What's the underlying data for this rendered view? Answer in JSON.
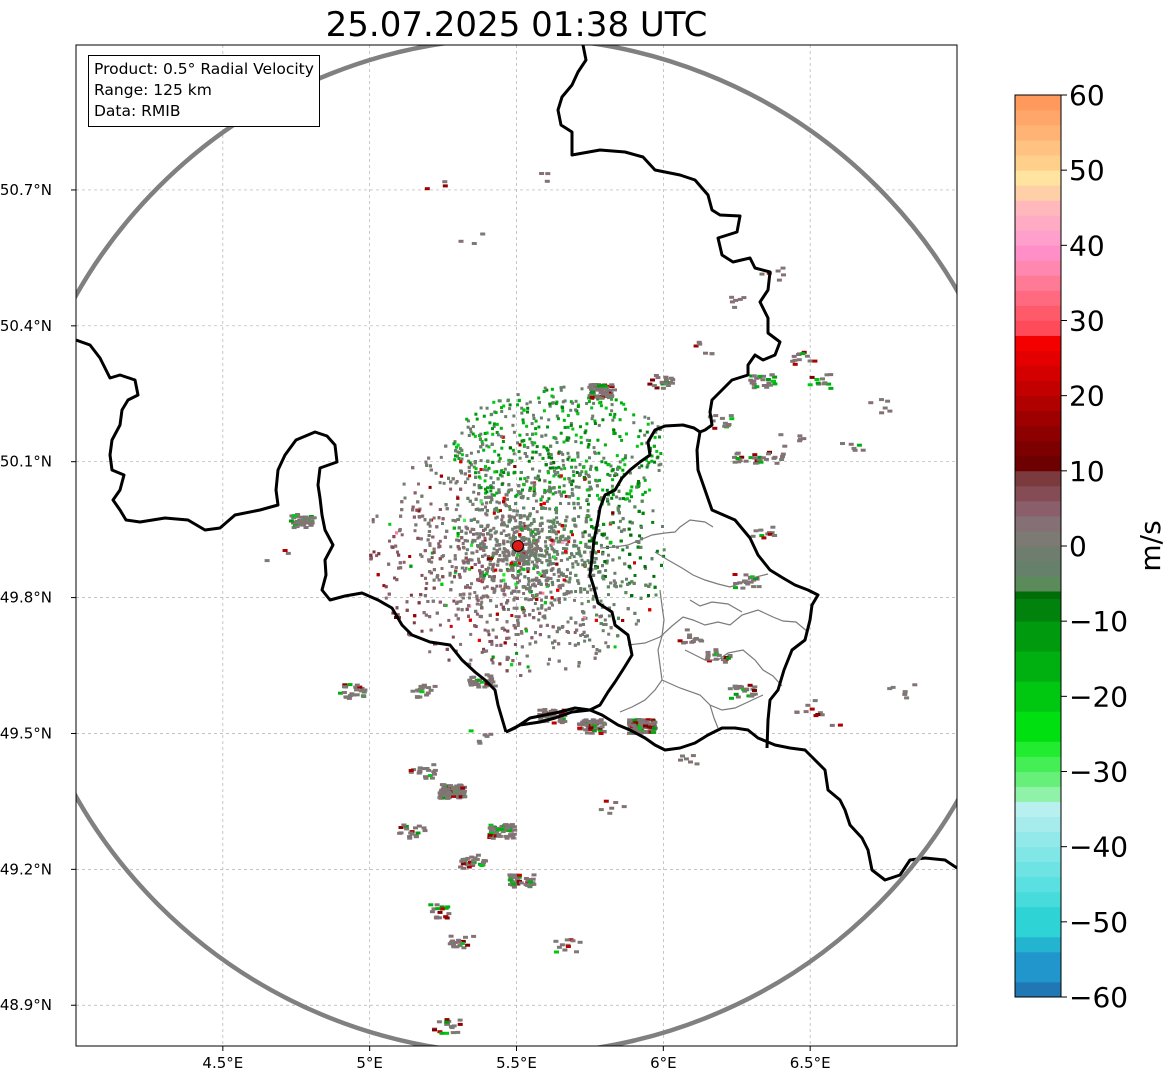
{
  "title": "25.07.2025 01:38 UTC",
  "info": {
    "product": "Product: 0.5° Radial Velocity",
    "range": "Range: 125 km",
    "source": "Data: RMIB"
  },
  "axes": {
    "x_ticks": [
      {
        "label": "4.5°E",
        "lon": 4.5
      },
      {
        "label": "5°E",
        "lon": 5.0
      },
      {
        "label": "5.5°E",
        "lon": 5.5
      },
      {
        "label": "6°E",
        "lon": 6.0
      },
      {
        "label": "6.5°E",
        "lon": 6.5
      }
    ],
    "y_ticks": [
      {
        "label": "50.7°N",
        "lat": 50.7
      },
      {
        "label": "50.4°N",
        "lat": 50.4
      },
      {
        "label": "50.1°N",
        "lat": 50.1
      },
      {
        "label": "49.8°N",
        "lat": 49.8
      },
      {
        "label": "49.5°N",
        "lat": 49.5
      },
      {
        "label": "49.2°N",
        "lat": 49.2
      },
      {
        "label": "48.9°N",
        "lat": 48.9
      }
    ],
    "lon_range": [
      4.0,
      7.0
    ],
    "lat_range": [
      48.81,
      51.02
    ]
  },
  "radar": {
    "lon": 5.505,
    "lat": 49.914,
    "range_km": 125,
    "site_color": "#e0191b"
  },
  "colorbar": {
    "unit": "m/s",
    "min": -60,
    "max": 60,
    "ticks": [
      60,
      50,
      40,
      30,
      20,
      10,
      0,
      -10,
      -20,
      -30,
      -40,
      -50,
      -60
    ],
    "tick_labels": [
      "60",
      "50",
      "40",
      "30",
      "20",
      "10",
      "0",
      "−10",
      "−20",
      "−30",
      "−40",
      "−50",
      "−60"
    ],
    "bands": [
      {
        "from": -60,
        "to": -58,
        "color": "#1f77b4"
      },
      {
        "from": -58,
        "to": -54,
        "color": "#2196cc"
      },
      {
        "from": -54,
        "to": -52,
        "color": "#23b4d0"
      },
      {
        "from": -52,
        "to": -48,
        "color": "#2ed3d6"
      },
      {
        "from": -48,
        "to": -46,
        "color": "#48dbdb"
      },
      {
        "from": -46,
        "to": -44,
        "color": "#5ae0e0"
      },
      {
        "from": -44,
        "to": -42,
        "color": "#6de3e3"
      },
      {
        "from": -42,
        "to": -40,
        "color": "#80e6e6"
      },
      {
        "from": -40,
        "to": -38,
        "color": "#93e9e9"
      },
      {
        "from": -38,
        "to": -36,
        "color": "#a6ecec"
      },
      {
        "from": -36,
        "to": -34,
        "color": "#b8efef"
      },
      {
        "from": -34,
        "to": -32,
        "color": "#90f2a8"
      },
      {
        "from": -32,
        "to": -30,
        "color": "#66f07a"
      },
      {
        "from": -30,
        "to": -28,
        "color": "#44ee55"
      },
      {
        "from": -28,
        "to": -26,
        "color": "#22ec30"
      },
      {
        "from": -26,
        "to": -22,
        "color": "#00e010"
      },
      {
        "from": -22,
        "to": -18,
        "color": "#00c810"
      },
      {
        "from": -18,
        "to": -14,
        "color": "#00b010"
      },
      {
        "from": -14,
        "to": -10,
        "color": "#009a0e"
      },
      {
        "from": -10,
        "to": -7,
        "color": "#00820c"
      },
      {
        "from": -7,
        "to": -6,
        "color": "#006e08"
      },
      {
        "from": -6,
        "to": -4,
        "color": "#5b8a5b"
      },
      {
        "from": -4,
        "to": -2,
        "color": "#67806b"
      },
      {
        "from": -2,
        "to": 0,
        "color": "#6e7d6e"
      },
      {
        "from": 0,
        "to": 2,
        "color": "#7d7a74"
      },
      {
        "from": 2,
        "to": 4,
        "color": "#857076"
      },
      {
        "from": 4,
        "to": 6,
        "color": "#8a5f6b"
      },
      {
        "from": 6,
        "to": 8,
        "color": "#864c55"
      },
      {
        "from": 8,
        "to": 10,
        "color": "#7a3a3e"
      },
      {
        "from": 10,
        "to": 12,
        "color": "#6d0000"
      },
      {
        "from": 12,
        "to": 14,
        "color": "#7d0000"
      },
      {
        "from": 14,
        "to": 16,
        "color": "#8d0000"
      },
      {
        "from": 16,
        "to": 18,
        "color": "#9e0000"
      },
      {
        "from": 18,
        "to": 20,
        "color": "#b00000"
      },
      {
        "from": 20,
        "to": 22,
        "color": "#c20000"
      },
      {
        "from": 22,
        "to": 24,
        "color": "#d40000"
      },
      {
        "from": 24,
        "to": 26,
        "color": "#e40000"
      },
      {
        "from": 26,
        "to": 28,
        "color": "#f50000"
      },
      {
        "from": 28,
        "to": 30,
        "color": "#ff4a5a"
      },
      {
        "from": 30,
        "to": 32,
        "color": "#ff5a6a"
      },
      {
        "from": 32,
        "to": 34,
        "color": "#ff6a80"
      },
      {
        "from": 34,
        "to": 36,
        "color": "#ff7a95"
      },
      {
        "from": 36,
        "to": 38,
        "color": "#ff87b0"
      },
      {
        "from": 38,
        "to": 40,
        "color": "#ff8fc6"
      },
      {
        "from": 40,
        "to": 42,
        "color": "#ff9fcc"
      },
      {
        "from": 42,
        "to": 44,
        "color": "#ffabc4"
      },
      {
        "from": 44,
        "to": 46,
        "color": "#ffb8bc"
      },
      {
        "from": 46,
        "to": 48,
        "color": "#ffd0a8"
      },
      {
        "from": 48,
        "to": 50,
        "color": "#ffe39e"
      },
      {
        "from": 50,
        "to": 52,
        "color": "#ffd08c"
      },
      {
        "from": 52,
        "to": 54,
        "color": "#ffc280"
      },
      {
        "from": 54,
        "to": 56,
        "color": "#ffb476"
      },
      {
        "from": 56,
        "to": 58,
        "color": "#ffa66a"
      },
      {
        "from": 58,
        "to": 60,
        "color": "#ff9a5c"
      }
    ]
  }
}
